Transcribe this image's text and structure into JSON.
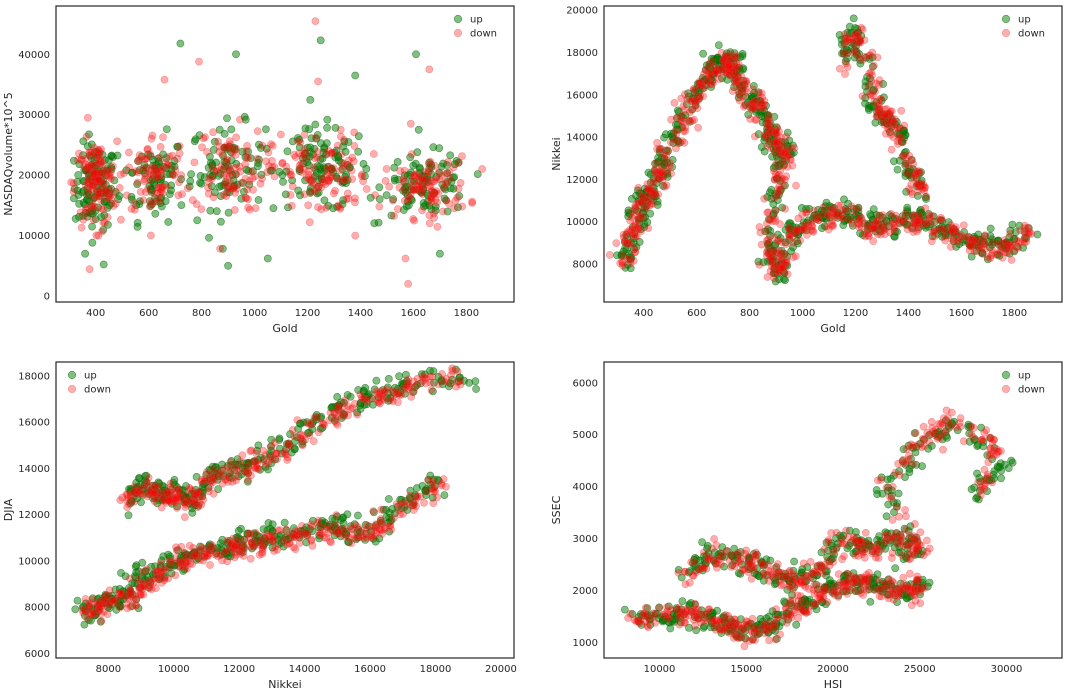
{
  "colors": {
    "up": "#008000",
    "down": "#ff0000",
    "up_edge": "#0a5a0a",
    "down_edge": "#e04040"
  },
  "chart_data": [
    {
      "type": "scatter",
      "xlabel": "Gold",
      "ylabel": "NASDAQvolume*10^5",
      "xlim": [
        250,
        1980
      ],
      "ylim": [
        -1000,
        48000
      ],
      "xticks": [
        400,
        600,
        800,
        1000,
        1200,
        1400,
        1600,
        1800
      ],
      "yticks": [
        0,
        10000,
        20000,
        30000,
        40000
      ],
      "legend": {
        "position": "top-right"
      },
      "series": [
        {
          "name": "up",
          "color": "#008000",
          "clusters": [
            [
              400,
              18000,
              40,
              3500,
              120
            ],
            [
              620,
              19500,
              60,
              3500,
              80
            ],
            [
              900,
              21500,
              70,
              3500,
              90
            ],
            [
              1250,
              21000,
              90,
              3500,
              110
            ],
            [
              1650,
              18500,
              80,
              2500,
              100
            ]
          ],
          "outliers": [
            [
              720,
              41800
            ],
            [
              930,
              40000
            ],
            [
              1250,
              42300
            ],
            [
              1380,
              36500
            ],
            [
              1610,
              40000
            ],
            [
              900,
              5000
            ],
            [
              1050,
              6200
            ],
            [
              430,
              5200
            ],
            [
              360,
              7000
            ],
            [
              1700,
              7000
            ],
            [
              880,
              7800
            ],
            [
              1620,
              27500
            ]
          ]
        },
        {
          "name": "down",
          "color": "#ff0000",
          "clusters": [
            [
              400,
              18500,
              40,
              3500,
              120
            ],
            [
              620,
              20000,
              60,
              3500,
              80
            ],
            [
              900,
              21000,
              70,
              3500,
              90
            ],
            [
              1250,
              20000,
              90,
              3500,
              110
            ],
            [
              1650,
              18000,
              80,
              2500,
              100
            ]
          ],
          "outliers": [
            [
              1230,
              45500
            ],
            [
              1580,
              2000
            ],
            [
              660,
              35800
            ],
            [
              790,
              38800
            ],
            [
              370,
              29500
            ],
            [
              1570,
              6200
            ],
            [
              1590,
              28500
            ],
            [
              1660,
              37500
            ],
            [
              1240,
              35500
            ],
            [
              870,
              7800
            ],
            [
              410,
              10000
            ],
            [
              1380,
              10000
            ]
          ]
        }
      ]
    },
    {
      "type": "scatter",
      "xlabel": "Gold",
      "ylabel": "Nikkei",
      "xlim": [
        250,
        1980
      ],
      "ylim": [
        6200,
        20200
      ],
      "xticks": [
        400,
        600,
        800,
        1000,
        1200,
        1400,
        1600,
        1800
      ],
      "yticks": [
        8000,
        10000,
        12000,
        14000,
        16000,
        18000,
        20000
      ],
      "legend": {
        "position": "top-right"
      },
      "series": [
        {
          "name": "up",
          "color": "#008000",
          "path": [
            [
              320,
              7800
            ],
            [
              360,
              9500
            ],
            [
              400,
              11000
            ],
            [
              430,
              11500
            ],
            [
              480,
              13000
            ],
            [
              550,
              15000
            ],
            [
              620,
              16500
            ],
            [
              680,
              17500
            ],
            [
              720,
              17800
            ],
            [
              760,
              16500
            ],
            [
              830,
              15500
            ],
            [
              880,
              14000
            ],
            [
              930,
              13500
            ],
            [
              900,
              12000
            ],
            [
              880,
              9000
            ],
            [
              900,
              7500
            ],
            [
              960,
              9500
            ],
            [
              1050,
              10200
            ],
            [
              1150,
              10500
            ],
            [
              1250,
              9800
            ],
            [
              1350,
              10000
            ],
            [
              1450,
              10300
            ],
            [
              1550,
              9500
            ],
            [
              1650,
              9000
            ],
            [
              1750,
              8800
            ],
            [
              1880,
              10000
            ]
          ],
          "path2": [
            [
              1150,
              17500
            ],
            [
              1200,
              19500
            ],
            [
              1250,
              16500
            ],
            [
              1300,
              15000
            ],
            [
              1350,
              14500
            ],
            [
              1400,
              12500
            ],
            [
              1450,
              11500
            ]
          ]
        },
        {
          "name": "down",
          "color": "#ff0000",
          "path": [
            [
              320,
              7900
            ],
            [
              360,
              9600
            ],
            [
              400,
              10900
            ],
            [
              440,
              11700
            ],
            [
              490,
              13100
            ],
            [
              560,
              15200
            ],
            [
              630,
              16600
            ],
            [
              690,
              17400
            ],
            [
              730,
              17600
            ],
            [
              770,
              16200
            ],
            [
              840,
              15300
            ],
            [
              890,
              13800
            ],
            [
              940,
              13300
            ],
            [
              905,
              11800
            ],
            [
              870,
              8800
            ],
            [
              910,
              7600
            ],
            [
              970,
              9400
            ],
            [
              1060,
              10100
            ],
            [
              1160,
              10400
            ],
            [
              1260,
              9700
            ],
            [
              1360,
              9900
            ],
            [
              1460,
              10100
            ],
            [
              1560,
              9400
            ],
            [
              1660,
              8900
            ],
            [
              1760,
              8700
            ],
            [
              1860,
              9800
            ]
          ],
          "path2": [
            [
              1160,
              17300
            ],
            [
              1210,
              19000
            ],
            [
              1260,
              16300
            ],
            [
              1310,
              15000
            ],
            [
              1360,
              14300
            ],
            [
              1410,
              12400
            ],
            [
              1460,
              11400
            ]
          ]
        }
      ]
    },
    {
      "type": "scatter",
      "xlabel": "Nikkei",
      "ylabel": "DJIA",
      "xlim": [
        6400,
        20400
      ],
      "ylim": [
        5800,
        18600
      ],
      "xticks": [
        8000,
        10000,
        12000,
        14000,
        16000,
        18000,
        20000
      ],
      "yticks": [
        6000,
        8000,
        10000,
        12000,
        14000,
        16000,
        18000
      ],
      "legend": {
        "position": "top-left"
      },
      "series": [
        {
          "name": "up",
          "color": "#008000",
          "path": [
            [
              7200,
              7800
            ],
            [
              7800,
              8200
            ],
            [
              8500,
              8500
            ],
            [
              9000,
              9200
            ],
            [
              9800,
              9800
            ],
            [
              10500,
              10300
            ],
            [
              11500,
              10500
            ],
            [
              12200,
              10800
            ],
            [
              13000,
              11000
            ],
            [
              14000,
              11200
            ],
            [
              15000,
              11500
            ],
            [
              16000,
              11200
            ],
            [
              17000,
              12500
            ],
            [
              18000,
              13500
            ]
          ],
          "path2": [
            [
              8500,
              12500
            ],
            [
              9000,
              13300
            ],
            [
              9500,
              12800
            ],
            [
              10000,
              13000
            ],
            [
              10500,
              12500
            ],
            [
              11000,
              13500
            ],
            [
              11800,
              14000
            ],
            [
              12500,
              14300
            ],
            [
              13500,
              15000
            ],
            [
              14500,
              16200
            ],
            [
              15500,
              16800
            ],
            [
              16500,
              17300
            ],
            [
              17500,
              17800
            ],
            [
              19500,
              18000
            ]
          ]
        },
        {
          "name": "down",
          "color": "#ff0000",
          "path": [
            [
              7300,
              7700
            ],
            [
              7900,
              8100
            ],
            [
              8600,
              8400
            ],
            [
              9100,
              9100
            ],
            [
              9900,
              9700
            ],
            [
              10600,
              10200
            ],
            [
              11600,
              10400
            ],
            [
              12300,
              10700
            ],
            [
              13100,
              10900
            ],
            [
              14100,
              11100
            ],
            [
              15100,
              11400
            ],
            [
              16100,
              11100
            ],
            [
              17100,
              12400
            ],
            [
              18100,
              13400
            ]
          ],
          "path2": [
            [
              8600,
              12400
            ],
            [
              9100,
              13200
            ],
            [
              9600,
              12700
            ],
            [
              10100,
              12900
            ],
            [
              10600,
              12400
            ],
            [
              11100,
              13400
            ],
            [
              11900,
              13900
            ],
            [
              12600,
              14200
            ],
            [
              13600,
              14900
            ],
            [
              14600,
              16100
            ],
            [
              15600,
              16700
            ],
            [
              16600,
              17200
            ],
            [
              17600,
              17700
            ],
            [
              19000,
              17900
            ]
          ]
        }
      ]
    },
    {
      "type": "scatter",
      "xlabel": "HSI",
      "ylabel": "SSEC",
      "xlim": [
        6800,
        33200
      ],
      "ylim": [
        700,
        6400
      ],
      "xticks": [
        10000,
        15000,
        20000,
        25000,
        30000
      ],
      "yticks": [
        1000,
        2000,
        3000,
        4000,
        5000,
        6000
      ],
      "legend": {
        "position": "top-right"
      },
      "series": [
        {
          "name": "up",
          "color": "#008000",
          "path": [
            [
              8500,
              1500
            ],
            [
              10500,
              1500
            ],
            [
              12000,
              1600
            ],
            [
              13500,
              1400
            ],
            [
              15000,
              1200
            ],
            [
              16500,
              1300
            ],
            [
              18000,
              1700
            ],
            [
              19500,
              2000
            ],
            [
              21000,
              2200
            ],
            [
              22500,
              2100
            ],
            [
              24000,
              2000
            ],
            [
              25500,
              2100
            ]
          ],
          "path2": [
            [
              11500,
              2300
            ],
            [
              13000,
              2700
            ],
            [
              14500,
              2600
            ],
            [
              16000,
              2400
            ],
            [
              17500,
              2200
            ],
            [
              19000,
              2400
            ],
            [
              20500,
              3000
            ],
            [
              22000,
              2800
            ],
            [
              23500,
              3000
            ],
            [
              25000,
              2700
            ],
            [
              23000,
              4000
            ],
            [
              25000,
              4800
            ],
            [
              27000,
              5200
            ],
            [
              30000,
              4500
            ],
            [
              28000,
              3800
            ]
          ]
        },
        {
          "name": "down",
          "color": "#ff0000",
          "path": [
            [
              8600,
              1480
            ],
            [
              10600,
              1480
            ],
            [
              12100,
              1580
            ],
            [
              13600,
              1380
            ],
            [
              15100,
              1180
            ],
            [
              16600,
              1280
            ],
            [
              18100,
              1680
            ],
            [
              19600,
              1980
            ],
            [
              21100,
              2180
            ],
            [
              22600,
              2080
            ],
            [
              24100,
              1980
            ],
            [
              25300,
              2080
            ]
          ],
          "path2": [
            [
              11600,
              2280
            ],
            [
              13100,
              2680
            ],
            [
              14600,
              2580
            ],
            [
              16100,
              2380
            ],
            [
              17600,
              2180
            ],
            [
              19100,
              2380
            ],
            [
              20600,
              2980
            ],
            [
              22100,
              2780
            ],
            [
              23600,
              2980
            ],
            [
              25100,
              2680
            ],
            [
              23200,
              4100
            ],
            [
              25200,
              4900
            ],
            [
              27200,
              5300
            ],
            [
              29500,
              4700
            ],
            [
              28500,
              3900
            ]
          ]
        }
      ]
    }
  ]
}
